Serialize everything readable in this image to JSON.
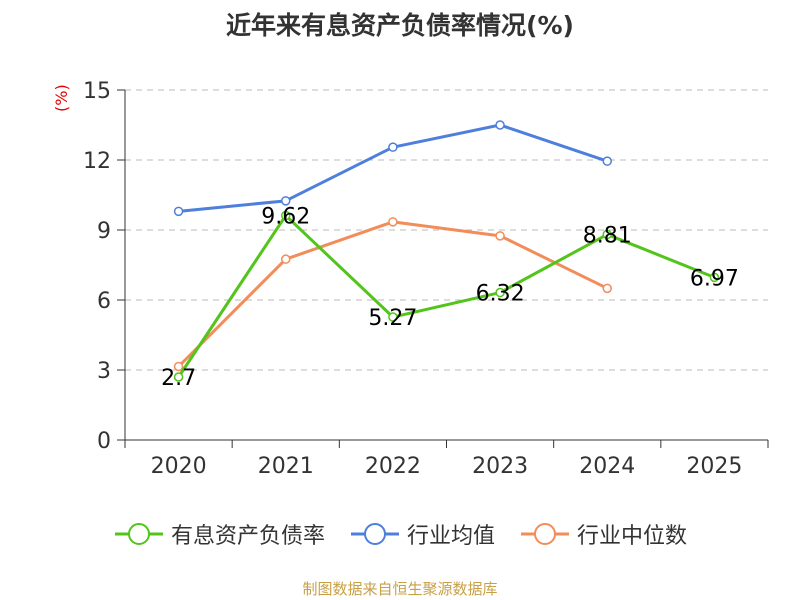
{
  "chart_data": {
    "type": "line",
    "title": "近年来有息资产负债率情况(%)",
    "ylabel": "(%)",
    "xlabel": "",
    "categories": [
      "2020",
      "2021",
      "2022",
      "2023",
      "2024",
      "2025"
    ],
    "ylim": [
      0,
      15
    ],
    "yticks": [
      0,
      3,
      6,
      9,
      12,
      15
    ],
    "grid": true,
    "legend_position": "bottom",
    "series": [
      {
        "name": "有息资产负债率",
        "color": "#52c41a",
        "values": [
          2.7,
          9.62,
          5.27,
          6.32,
          8.81,
          6.97
        ],
        "labels": [
          "2.7",
          "9.62",
          "5.27",
          "6.32",
          "8.81",
          "6.97"
        ]
      },
      {
        "name": "行业均值",
        "color": "#4e7fdc",
        "values": [
          9.8,
          10.25,
          12.55,
          13.5,
          11.95,
          null
        ]
      },
      {
        "name": "行业中位数",
        "color": "#f28c5a",
        "values": [
          3.15,
          7.75,
          9.35,
          8.75,
          6.5,
          null
        ]
      }
    ]
  },
  "source": "制图数据来自恒生聚源数据库"
}
